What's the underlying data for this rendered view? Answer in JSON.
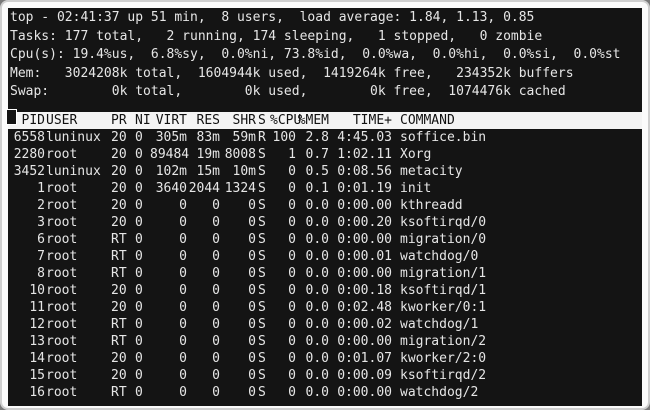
{
  "summary": [
    "top - 02:41:37 up 51 min,  8 users,  load average: 1.84, 1.13, 0.85",
    "Tasks: 177 total,   2 running, 174 sleeping,   1 stopped,   0 zombie",
    "Cpu(s): 19.4%us,  6.8%sy,  0.0%ni, 73.8%id,  0.0%wa,  0.0%hi,  0.0%si,  0.0%st",
    "Mem:   3024208k total,  1604944k used,  1419264k free,   234352k buffers",
    "Swap:        0k total,        0k used,        0k free,  1074476k cached"
  ],
  "columns": [
    "PID",
    "USER",
    "PR",
    "NI",
    "VIRT",
    "RES",
    "SHR",
    "S",
    "%CPU",
    "%MEM",
    "TIME+",
    "COMMAND"
  ],
  "processes": [
    [
      "6558",
      "luninux",
      "20",
      "0",
      "305m",
      "83m",
      "59m",
      "R",
      "100",
      "2.8",
      "4:45.03",
      "soffice.bin"
    ],
    [
      "2280",
      "root",
      "20",
      "0",
      "89484",
      "19m",
      "8008",
      "S",
      "1",
      "0.7",
      "1:02.11",
      "Xorg"
    ],
    [
      "3452",
      "luninux",
      "20",
      "0",
      "102m",
      "15m",
      "10m",
      "S",
      "0",
      "0.5",
      "0:08.56",
      "metacity"
    ],
    [
      "1",
      "root",
      "20",
      "0",
      "3640",
      "2044",
      "1324",
      "S",
      "0",
      "0.1",
      "0:01.19",
      "init"
    ],
    [
      "2",
      "root",
      "20",
      "0",
      "0",
      "0",
      "0",
      "S",
      "0",
      "0.0",
      "0:00.00",
      "kthreadd"
    ],
    [
      "3",
      "root",
      "20",
      "0",
      "0",
      "0",
      "0",
      "S",
      "0",
      "0.0",
      "0:00.20",
      "ksoftirqd/0"
    ],
    [
      "6",
      "root",
      "RT",
      "0",
      "0",
      "0",
      "0",
      "S",
      "0",
      "0.0",
      "0:00.00",
      "migration/0"
    ],
    [
      "7",
      "root",
      "RT",
      "0",
      "0",
      "0",
      "0",
      "S",
      "0",
      "0.0",
      "0:00.01",
      "watchdog/0"
    ],
    [
      "8",
      "root",
      "RT",
      "0",
      "0",
      "0",
      "0",
      "S",
      "0",
      "0.0",
      "0:00.00",
      "migration/1"
    ],
    [
      "10",
      "root",
      "20",
      "0",
      "0",
      "0",
      "0",
      "S",
      "0",
      "0.0",
      "0:00.18",
      "ksoftirqd/1"
    ],
    [
      "11",
      "root",
      "20",
      "0",
      "0",
      "0",
      "0",
      "S",
      "0",
      "0.0",
      "0:02.48",
      "kworker/0:1"
    ],
    [
      "12",
      "root",
      "RT",
      "0",
      "0",
      "0",
      "0",
      "S",
      "0",
      "0.0",
      "0:00.02",
      "watchdog/1"
    ],
    [
      "13",
      "root",
      "RT",
      "0",
      "0",
      "0",
      "0",
      "S",
      "0",
      "0.0",
      "0:00.00",
      "migration/2"
    ],
    [
      "14",
      "root",
      "20",
      "0",
      "0",
      "0",
      "0",
      "S",
      "0",
      "0.0",
      "0:01.07",
      "kworker/2:0"
    ],
    [
      "15",
      "root",
      "20",
      "0",
      "0",
      "0",
      "0",
      "S",
      "0",
      "0.0",
      "0:00.09",
      "ksoftirqd/2"
    ],
    [
      "16",
      "root",
      "RT",
      "0",
      "0",
      "0",
      "0",
      "S",
      "0",
      "0.0",
      "0:00.00",
      "watchdog/2"
    ]
  ],
  "colors": {
    "terminal_bg": "#141414",
    "terminal_fg": "#e6e6e6",
    "header_bg": "#f4f4f4"
  }
}
